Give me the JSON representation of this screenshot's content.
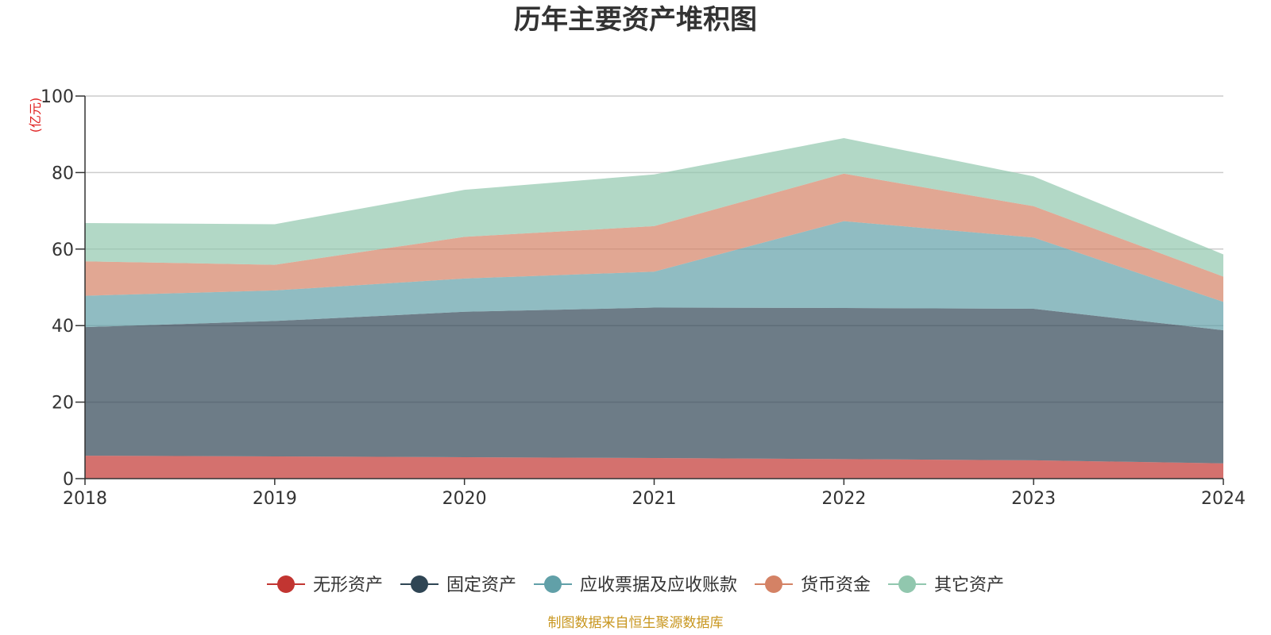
{
  "chart_data": {
    "type": "area",
    "stacked": true,
    "title": "历年主要资产堆积图",
    "y_unit": "(亿元)",
    "x": [
      "2018",
      "2019",
      "2020",
      "2021",
      "2022",
      "2023",
      "2024"
    ],
    "ylim": [
      0,
      100
    ],
    "yticks": [
      "0",
      "20",
      "40",
      "60",
      "80",
      "100"
    ],
    "grid": true,
    "legend_position": "bottom",
    "series": [
      {
        "name": "无形资产",
        "color": "#c23531",
        "values": [
          6.0,
          5.8,
          5.6,
          5.4,
          5.1,
          4.8,
          4.0
        ]
      },
      {
        "name": "固定资产",
        "color": "#2f4554",
        "values": [
          33.6,
          35.4,
          38.0,
          39.3,
          39.5,
          39.6,
          34.8
        ]
      },
      {
        "name": "应收票据及应收账款",
        "color": "#61a0a8",
        "values": [
          8.2,
          8.0,
          8.7,
          9.4,
          22.7,
          18.6,
          7.4
        ]
      },
      {
        "name": "货币资金",
        "color": "#d48265",
        "values": [
          9.0,
          6.7,
          10.9,
          11.9,
          12.4,
          8.2,
          6.6
        ]
      },
      {
        "name": "其它资产",
        "color": "#91c7ae",
        "values": [
          10.0,
          10.6,
          12.3,
          13.5,
          9.3,
          7.8,
          5.8
        ]
      }
    ],
    "source": "制图数据来自恒生聚源数据库"
  }
}
